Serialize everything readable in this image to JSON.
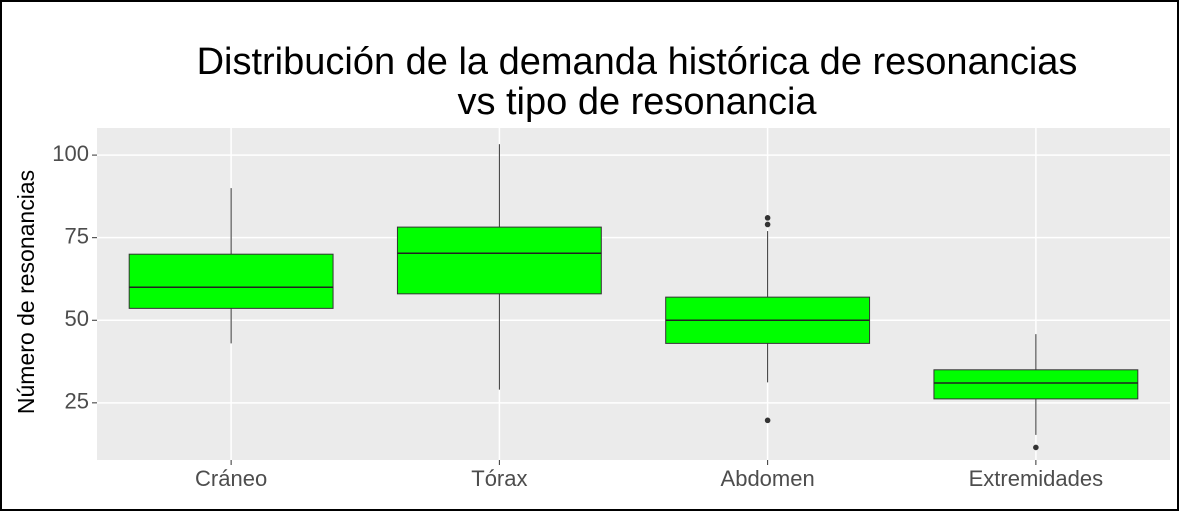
{
  "chart_data": {
    "type": "box",
    "title": [
      "Distribución de la demanda histórica de resonancias",
      "vs tipo de resonancia"
    ],
    "y_label": "Número de resonancias",
    "categories": [
      "Cráneo",
      "Tórax",
      "Abdomen",
      "Extremidades"
    ],
    "color": "#00ff00",
    "boxes": [
      {
        "min": 43,
        "q1": 53.6,
        "median": 60,
        "q3": 70,
        "max": 90,
        "outliers": []
      },
      {
        "min": 29,
        "q1": 58,
        "median": 70.3,
        "q3": 78.2,
        "max": 103.3,
        "outliers": []
      },
      {
        "min": 31.2,
        "q1": 43,
        "median": 50,
        "q3": 57,
        "max": 77,
        "outliers": [
          81,
          79,
          19.7
        ]
      },
      {
        "min": 15.3,
        "q1": 26.2,
        "median": 31,
        "q3": 35,
        "max": 45.8,
        "outliers": [
          11.5
        ]
      }
    ],
    "ylim": [
      7.7,
      108.2
    ],
    "yticks": [
      25,
      50,
      75,
      100
    ],
    "grid": true
  }
}
